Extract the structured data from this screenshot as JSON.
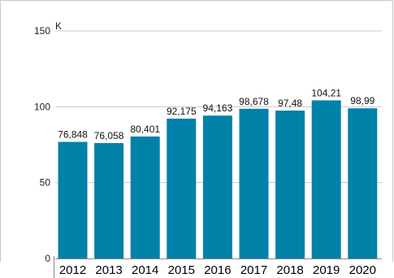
{
  "chart_data": {
    "type": "bar",
    "title": "",
    "xlabel": "",
    "ylabel": "",
    "y_unit": "K",
    "categories": [
      "2012",
      "2013",
      "2014",
      "2015",
      "2016",
      "2017",
      "2018",
      "2019",
      "2020"
    ],
    "values": [
      76.848,
      76.058,
      80.401,
      92.175,
      94.163,
      98.678,
      97.48,
      104.21,
      98.99
    ],
    "data_labels": [
      "76,848",
      "76,058",
      "80,401",
      "92,175",
      "94,163",
      "98,678",
      "97,48",
      "104,21",
      "98,99"
    ],
    "ylim": [
      0,
      150
    ],
    "yticks": [
      0,
      50,
      100,
      150
    ],
    "ytick_labels": [
      "0",
      "50",
      "100",
      "150"
    ],
    "grid": true,
    "legend": "none",
    "colors": {
      "bar": "#0081a8",
      "grid": "#c8c8c8",
      "axis": "#888888"
    }
  }
}
